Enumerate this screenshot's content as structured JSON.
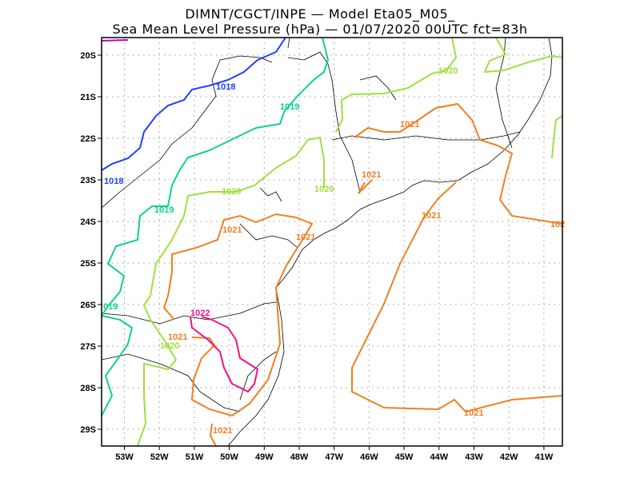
{
  "title": {
    "line1": "DIMNT/CGCT/INPE —  Model Eta05_M05_",
    "line2": "Sea Mean Level Pressure (hPa) — 01/07/2020 00UTC fct=83h"
  },
  "axes": {
    "lon_labels": [
      "53W",
      "52W",
      "51W",
      "50W",
      "49W",
      "48W",
      "47W",
      "46W",
      "45W",
      "44W",
      "43W",
      "42W",
      "41W"
    ],
    "lat_labels": [
      "20S",
      "21S",
      "22S",
      "23S",
      "24S",
      "25S",
      "26S",
      "27S",
      "28S",
      "29S"
    ]
  },
  "contour_labels": {
    "c1018a": "1018",
    "c1018b": "1018",
    "c1019a": "1019",
    "c1019b": "1019",
    "c1019c": "019",
    "c1020a": "1020",
    "c1020b": "1020",
    "c1020c": "1020",
    "c1020d": "1020",
    "c1021a": "1021",
    "c1021b": "1021",
    "c1021c": "1021",
    "c1021d": "1021",
    "c1021e": "1021",
    "c1021f": "102",
    "c1021g": "1021",
    "c1021h": "1021",
    "c1021i": "1021",
    "c1022a": "1022"
  },
  "colors": {
    "c1017": "#c000c0",
    "c1018": "#2040ff",
    "c1019": "#10d090",
    "c1020": "#a0e040",
    "c1021": "#f08020",
    "c1022": "#f0108a"
  }
}
